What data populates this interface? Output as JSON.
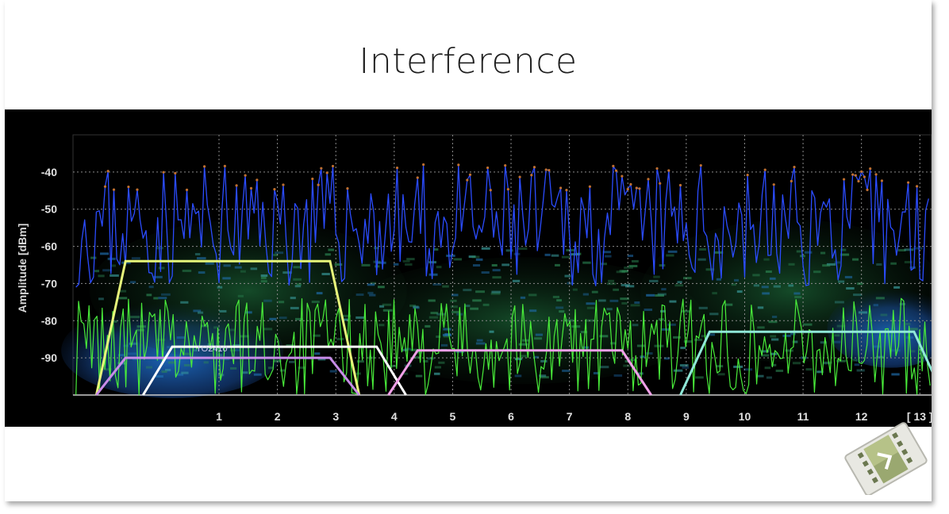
{
  "slide": {
    "title": "Interference"
  },
  "chart_data": {
    "type": "line",
    "title": "Interference",
    "ylabel": "Amplitude [dBm]",
    "xlabel": "",
    "ylim": [
      -100,
      -30
    ],
    "xlim": [
      -1.5,
      13.2
    ],
    "y_ticks": [
      -40,
      -50,
      -60,
      -70,
      -80,
      -90
    ],
    "x_ticks": [
      {
        "value": 1,
        "label": "1"
      },
      {
        "value": 2,
        "label": "2"
      },
      {
        "value": 3,
        "label": "3"
      },
      {
        "value": 4,
        "label": "4"
      },
      {
        "value": 5,
        "label": "5"
      },
      {
        "value": 6,
        "label": "6"
      },
      {
        "value": 7,
        "label": "7"
      },
      {
        "value": 8,
        "label": "8"
      },
      {
        "value": 9,
        "label": "9"
      },
      {
        "value": 10,
        "label": "10"
      },
      {
        "value": 11,
        "label": "11"
      },
      {
        "value": 12,
        "label": "12"
      },
      {
        "value": 13,
        "label": "[ 13 ]"
      }
    ],
    "grid": true,
    "networks": [
      {
        "color": "#e6f57a",
        "points": [
          [
            -1.1,
            -100
          ],
          [
            -0.6,
            -64
          ],
          [
            2.9,
            -64
          ],
          [
            3.4,
            -100
          ]
        ]
      },
      {
        "color": "#c88ce8",
        "points": [
          [
            -1.1,
            -100
          ],
          [
            -0.6,
            -90
          ],
          [
            2.9,
            -90
          ],
          [
            3.4,
            -100
          ]
        ]
      },
      {
        "color": "#ffffff",
        "label": "TO2410",
        "points": [
          [
            -0.3,
            -100
          ],
          [
            0.2,
            -87
          ],
          [
            3.7,
            -87
          ],
          [
            4.2,
            -100
          ]
        ]
      },
      {
        "color": "#f0a0e8",
        "points": [
          [
            3.9,
            -100
          ],
          [
            4.4,
            -88
          ],
          [
            7.9,
            -88
          ],
          [
            8.4,
            -100
          ]
        ]
      },
      {
        "color": "#8fe8d8",
        "points": [
          [
            8.9,
            -100
          ],
          [
            9.4,
            -83
          ],
          [
            12.9,
            -83
          ],
          [
            13.4,
            -100
          ]
        ]
      }
    ],
    "series": [
      {
        "color": "#2b4cff",
        "description_visible": false
      },
      {
        "color": "#49ec3a",
        "description_visible": false
      }
    ]
  }
}
